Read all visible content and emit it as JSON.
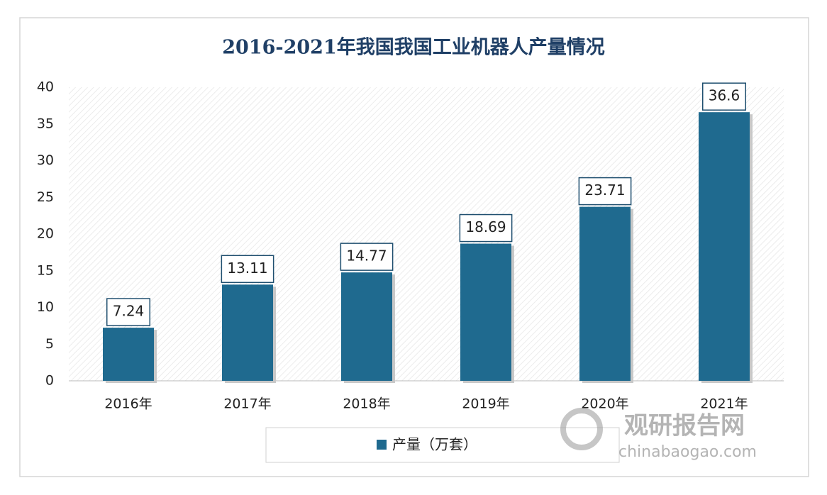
{
  "chart_data": {
    "type": "bar",
    "title": "2016-2021年我国我国工业机器人产量情况",
    "categories": [
      "2016年",
      "2017年",
      "2018年",
      "2019年",
      "2020年",
      "2021年"
    ],
    "series": [
      {
        "name": "产量（万套）",
        "color": "#1f6a8f",
        "values": [
          7.24,
          13.11,
          14.77,
          18.69,
          23.71,
          36.6
        ]
      }
    ],
    "ylim": [
      0,
      40
    ],
    "yticks": [
      0,
      5,
      10,
      15,
      20,
      25,
      30,
      35,
      40
    ],
    "grid": false,
    "legend": "bottom",
    "watermark": {
      "name": "观研报告网",
      "url": "chinabaogao.com"
    }
  }
}
